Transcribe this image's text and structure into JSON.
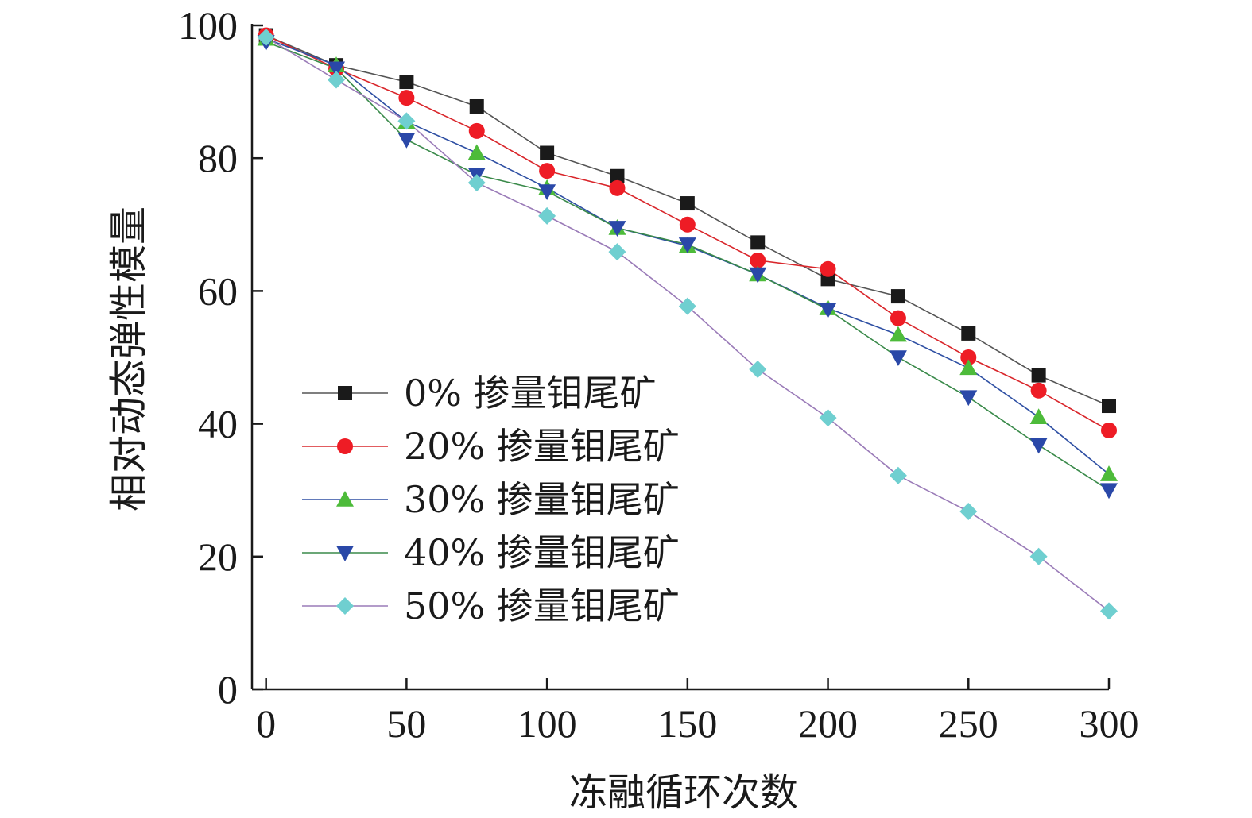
{
  "chart_data": {
    "type": "line",
    "xlabel": "冻融循环次数",
    "ylabel": "相对动态弹性模量",
    "xlim": [
      -5,
      300
    ],
    "ylim": [
      0,
      100
    ],
    "xticks": [
      0,
      50,
      100,
      150,
      200,
      250,
      300
    ],
    "yticks": [
      0,
      20,
      40,
      60,
      80,
      100
    ],
    "grid": false,
    "legend_position": "center-left",
    "x": [
      0,
      25,
      50,
      75,
      100,
      125,
      150,
      175,
      200,
      225,
      250,
      275,
      300
    ],
    "series": [
      {
        "name": "0% 掺量钼尾矿",
        "marker": "square",
        "line_color": "#555555",
        "marker_color": "#1a1a1a",
        "values": [
          98.5,
          94.0,
          91.5,
          87.8,
          80.8,
          77.3,
          73.2,
          67.3,
          61.8,
          59.2,
          53.6,
          47.3,
          42.7
        ]
      },
      {
        "name": "20% 掺量钼尾矿",
        "marker": "circle",
        "line_color": "#d9262b",
        "marker_color": "#ee1c25",
        "values": [
          98.5,
          93.5,
          89.1,
          84.1,
          78.1,
          75.5,
          70.0,
          64.6,
          63.3,
          55.9,
          50.0,
          45.0,
          39.0
        ]
      },
      {
        "name": "30% 掺量钼尾矿",
        "marker": "triangle-up",
        "line_color": "#2e4fa3",
        "marker_color": "#4dbb3a",
        "values": [
          98.0,
          94.0,
          85.5,
          80.8,
          75.5,
          69.5,
          66.8,
          62.5,
          57.4,
          53.4,
          48.4,
          41.0,
          32.4
        ]
      },
      {
        "name": "40% 掺量钼尾矿",
        "marker": "triangle-down",
        "line_color": "#3a8a4a",
        "marker_color": "#2a48a8",
        "values": [
          97.5,
          93.5,
          82.8,
          77.5,
          75.0,
          69.5,
          67.0,
          62.5,
          57.2,
          50.0,
          44.0,
          36.8,
          30.0
        ]
      },
      {
        "name": "50% 掺量钼尾矿",
        "marker": "diamond",
        "line_color": "#9a7bb8",
        "marker_color": "#6fcfd0",
        "values": [
          98.2,
          91.8,
          85.6,
          76.3,
          71.3,
          65.9,
          57.7,
          48.2,
          40.9,
          32.2,
          26.8,
          20.0,
          11.8
        ]
      }
    ]
  }
}
